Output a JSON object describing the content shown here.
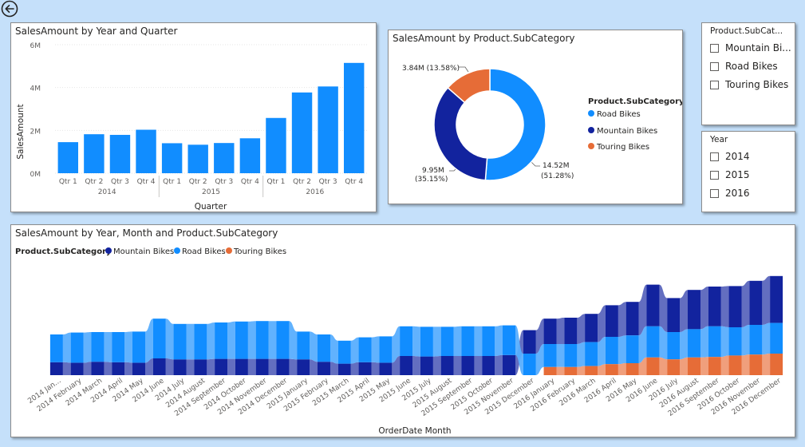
{
  "toolbar": {
    "back_icon": "back-arrow-icon"
  },
  "bar_card": {
    "title": "SalesAmount by Year and Quarter",
    "xlabel": "Quarter",
    "ylabel": "SalesAmount"
  },
  "donut_card": {
    "title": "SalesAmount by Product.SubCategory",
    "legend_title": "Product.SubCategory",
    "legend": [
      "Road Bikes",
      "Mountain Bikes",
      "Touring Bikes"
    ],
    "labels": {
      "road_value": "14.52M",
      "road_pct": "(51.28%)",
      "mountain_value": "9.95M",
      "mountain_pct": "(35.15%)",
      "touring": "3.84M (13.58%)"
    }
  },
  "subcat_slicer": {
    "title": "Product.SubCat...",
    "items": [
      "Mountain Bi...",
      "Road Bikes",
      "Touring Bikes"
    ]
  },
  "year_slicer": {
    "title": "Year",
    "items": [
      "2014",
      "2015",
      "2016"
    ]
  },
  "ribbon_card": {
    "title": "SalesAmount by Year, Month and Product.SubCategory",
    "legend_title": "Product.SubCategory",
    "legend": [
      "Mountain Bikes",
      "Road Bikes",
      "Touring Bikes"
    ],
    "xlabel": "OrderDate Month"
  },
  "colors": {
    "bar": "#118dff",
    "road": "#118dff",
    "mountain": "#12239e",
    "touring": "#e66c37"
  },
  "chart_data": [
    {
      "type": "bar",
      "title": "SalesAmount by Year and Quarter",
      "categories": [
        "Qtr 1",
        "Qtr 2",
        "Qtr 3",
        "Qtr 4",
        "Qtr 1",
        "Qtr 2",
        "Qtr 3",
        "Qtr 4",
        "Qtr 1",
        "Qtr 2",
        "Qtr 3",
        "Qtr 4"
      ],
      "groups": [
        "2014",
        "2015",
        "2016"
      ],
      "values": [
        1.45,
        1.82,
        1.79,
        2.03,
        1.4,
        1.33,
        1.41,
        1.63,
        2.58,
        3.77,
        4.05,
        5.15
      ],
      "xlabel": "Quarter",
      "ylabel": "SalesAmount",
      "yticks": [
        "0M",
        "2M",
        "4M",
        "6M"
      ],
      "ylim": [
        0,
        6
      ]
    },
    {
      "type": "pie",
      "title": "SalesAmount by Product.SubCategory",
      "labels": [
        "Road Bikes",
        "Mountain Bikes",
        "Touring Bikes"
      ],
      "values": [
        14.52,
        9.95,
        3.84
      ],
      "percent": [
        51.28,
        35.15,
        13.58
      ]
    },
    {
      "type": "area",
      "title": "SalesAmount by Year, Month and Product.SubCategory",
      "xlabel": "OrderDate Month",
      "categories": [
        "2014 Jan...",
        "2014 February",
        "2014 March",
        "2014 April",
        "2014 May",
        "2014 June",
        "2014 July",
        "2014 August",
        "2014 September",
        "2014 October",
        "2014 November",
        "2014 December",
        "2015 January",
        "2015 February",
        "2015 March",
        "2015 April",
        "2015 May",
        "2015 June",
        "2015 July",
        "2015 August",
        "2015 September",
        "2015 October",
        "2015 November",
        "2015 December",
        "2016 January",
        "2016 February",
        "2016 March",
        "2016 April",
        "2016 May",
        "2016 June",
        "2016 July",
        "2016 August",
        "2016 September",
        "2016 October",
        "2016 November",
        "2016 December"
      ],
      "series": [
        {
          "name": "Mountain Bikes",
          "values": [
            0.27,
            0.26,
            0.28,
            0.27,
            0.26,
            0.35,
            0.33,
            0.33,
            0.34,
            0.34,
            0.34,
            0.34,
            0.33,
            0.28,
            0.24,
            0.27,
            0.26,
            0.4,
            0.39,
            0.4,
            0.4,
            0.4,
            0.42,
            0.49,
            0.53,
            0.55,
            0.59,
            0.66,
            0.7,
            0.87,
            0.71,
            0.82,
            0.83,
            0.86,
            0.92,
            0.98
          ]
        },
        {
          "name": "Road Bikes",
          "values": [
            0.58,
            0.63,
            0.62,
            0.63,
            0.65,
            0.83,
            0.74,
            0.74,
            0.76,
            0.78,
            0.79,
            0.79,
            0.58,
            0.57,
            0.48,
            0.52,
            0.55,
            0.62,
            0.62,
            0.61,
            0.62,
            0.62,
            0.62,
            0.45,
            0.48,
            0.48,
            0.5,
            0.57,
            0.58,
            0.65,
            0.57,
            0.59,
            0.64,
            0.59,
            0.62,
            0.64
          ]
        },
        {
          "name": "Touring Bikes",
          "values": [
            0,
            0,
            0,
            0,
            0,
            0,
            0,
            0,
            0,
            0,
            0,
            0,
            0,
            0,
            0,
            0,
            0,
            0,
            0,
            0,
            0,
            0,
            0,
            0,
            0.17,
            0.17,
            0.19,
            0.23,
            0.25,
            0.37,
            0.33,
            0.37,
            0.38,
            0.41,
            0.43,
            0.45
          ]
        }
      ]
    }
  ]
}
